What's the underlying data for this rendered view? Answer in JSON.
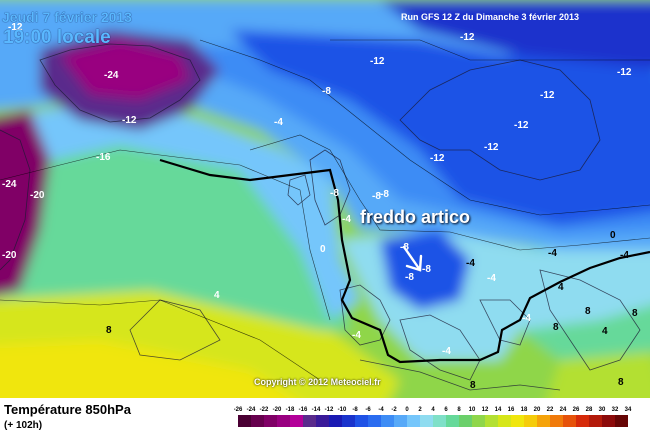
{
  "header": {
    "date_label": "Jeudi 7 février 2013",
    "time_label": "19:00 locale",
    "run_label": "Run GFS 12 Z du Dimanche 3 février 2013"
  },
  "annotation": {
    "text": "freddo artico",
    "arrow": "arrow-down-right-icon"
  },
  "copyright": "Copyright © 2012 Meteociel.fr",
  "footer": {
    "parameter": "Température 850hPa",
    "forecast_step": "(+ 102h)"
  },
  "legend": {
    "ticks": [
      "-26",
      "-24",
      "-22",
      "-20",
      "-18",
      "-16",
      "-14",
      "-12",
      "-10",
      "-8",
      "-6",
      "-4",
      "-2",
      "0",
      "2",
      "4",
      "6",
      "8",
      "10",
      "12",
      "14",
      "16",
      "18",
      "20",
      "22",
      "24",
      "26",
      "28",
      "30",
      "32",
      "34"
    ],
    "colors": [
      "#4a0033",
      "#66004d",
      "#800066",
      "#990080",
      "#b30099",
      "#5a2a8c",
      "#3a1a99",
      "#1a1ab3",
      "#1a33cc",
      "#1f52e6",
      "#2a6cf0",
      "#3d8cf5",
      "#57a9f8",
      "#75c6fb",
      "#8fdcf0",
      "#7fe0c8",
      "#66d99a",
      "#6bd06b",
      "#8fd64a",
      "#b3e033",
      "#d6e61a",
      "#f0e60d",
      "#f5cc0a",
      "#f5a30a",
      "#f07a0a",
      "#e6520a",
      "#d62a0a",
      "#b31a0a",
      "#8c0a0a",
      "#660505"
    ]
  },
  "contour_labels": [
    {
      "text": "-12"
    },
    {
      "text": "-12"
    },
    {
      "text": "-12"
    },
    {
      "text": "-12"
    },
    {
      "text": "-24"
    },
    {
      "text": "-16"
    },
    {
      "text": "-20"
    },
    {
      "text": "-24"
    },
    {
      "text": "-20"
    },
    {
      "text": "-12"
    },
    {
      "text": "-12"
    },
    {
      "text": "-12"
    },
    {
      "text": "-12"
    },
    {
      "text": "-12"
    },
    {
      "text": "-8"
    },
    {
      "text": "-8"
    },
    {
      "text": "-8"
    },
    {
      "text": "-8"
    },
    {
      "text": "-8"
    },
    {
      "text": "-8"
    },
    {
      "text": "-8"
    },
    {
      "text": "-4"
    },
    {
      "text": "-4"
    },
    {
      "text": "-4"
    },
    {
      "text": "-4"
    },
    {
      "text": "-4"
    },
    {
      "text": "-4"
    },
    {
      "text": "-4"
    },
    {
      "text": "-4"
    },
    {
      "text": "-4"
    },
    {
      "text": "0"
    },
    {
      "text": "0"
    },
    {
      "text": "4"
    },
    {
      "text": "4"
    },
    {
      "text": "4"
    },
    {
      "text": "8"
    },
    {
      "text": "8"
    },
    {
      "text": "8"
    },
    {
      "text": "8"
    },
    {
      "text": "8"
    },
    {
      "text": "8"
    }
  ]
}
